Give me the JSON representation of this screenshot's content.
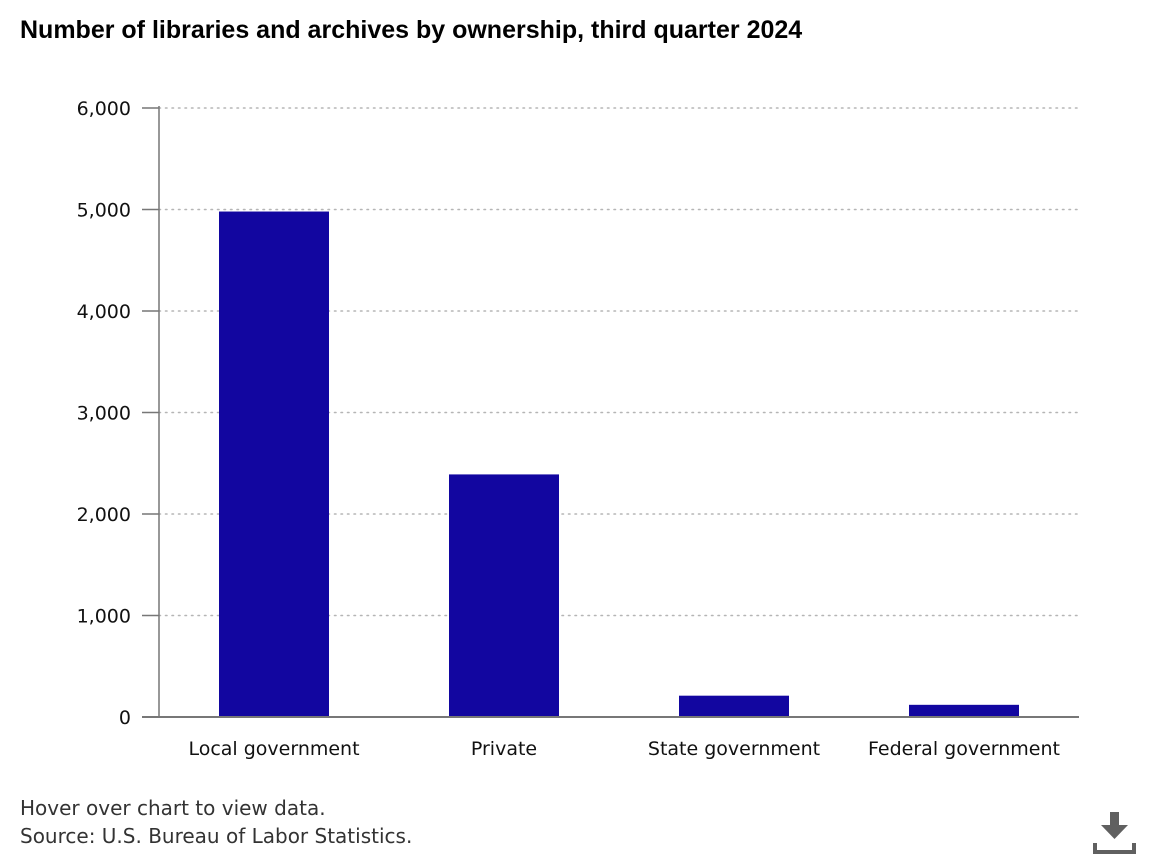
{
  "title": "Number of libraries and archives by ownership, third quarter 2024",
  "footer": {
    "hover_note": "Hover over chart to view data.",
    "source": "Source: U.S. Bureau of Labor Statistics."
  },
  "download_icon": "download-icon",
  "colors": {
    "bar": "#1206a0",
    "axis": "#777777",
    "grid": "#b5b5b5"
  },
  "chart_data": {
    "type": "bar",
    "title": "Number of libraries and archives by ownership, third quarter 2024",
    "categories": [
      "Local government",
      "Private",
      "State government",
      "Federal government"
    ],
    "values": [
      4980,
      2390,
      210,
      120
    ],
    "ylim": [
      0,
      6000
    ],
    "yticks": [
      0,
      1000,
      2000,
      3000,
      4000,
      5000,
      6000
    ],
    "ytick_labels": [
      "0",
      "1,000",
      "2,000",
      "3,000",
      "4,000",
      "5,000",
      "6,000"
    ],
    "xlabel": "",
    "ylabel": "",
    "grid": true,
    "legend": "none"
  }
}
